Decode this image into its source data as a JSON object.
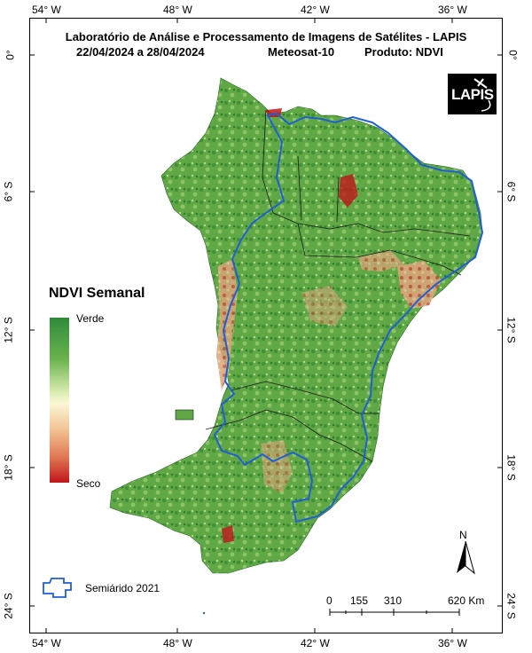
{
  "header": {
    "title": "Laboratório de Análise e Processamento de Imagens de Satélites - LAPIS",
    "date_range": "22/04/2024  a  28/04/2024",
    "satellite": "Meteosat-10",
    "product": "Produto: NDVI"
  },
  "logo": {
    "text": "LAPIS"
  },
  "axes": {
    "longitude_ticks": [
      "54° W",
      "48° W",
      "42° W",
      "36° W"
    ],
    "latitude_ticks": [
      "0°",
      "6° S",
      "12° S",
      "18° S",
      "24° S"
    ]
  },
  "legend": {
    "title": "NDVI Semanal",
    "high_label": "Verde",
    "low_label": "Seco",
    "colors": [
      "#2e8b3a",
      "#6ab34e",
      "#d9ecb0",
      "#fbf7d6",
      "#f2c293",
      "#e07a55",
      "#c0161a"
    ],
    "boundary_label": "Semiárido 2021",
    "boundary_color": "#1f5fd6"
  },
  "scale_bar": {
    "labels": [
      "0",
      "155",
      "310",
      "620 Km"
    ]
  },
  "north_arrow": {
    "label": "N"
  }
}
